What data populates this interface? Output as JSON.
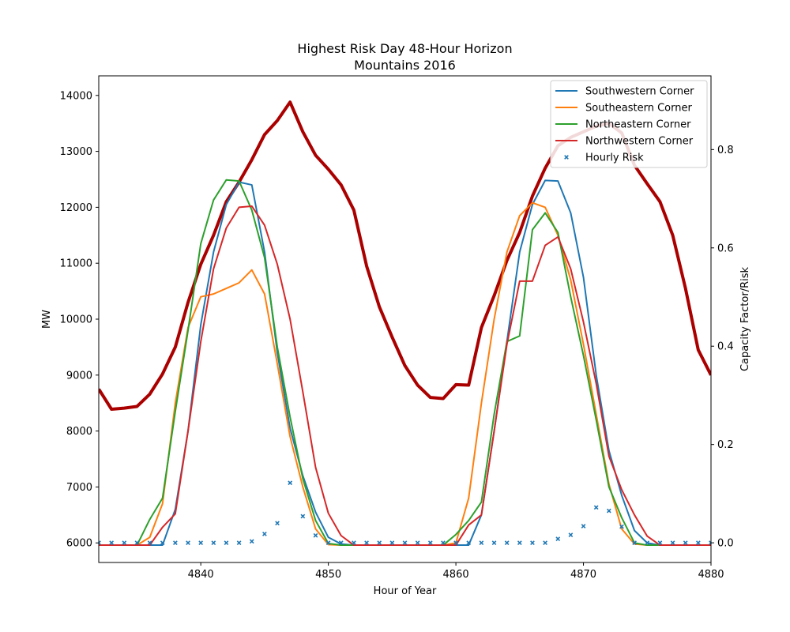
{
  "chart_data": {
    "type": "line",
    "title": "Highest Risk Day 48-Hour Horizon",
    "subtitle": "Mountains 2016",
    "xlabel": "Hour of Year",
    "ylabel": "MW",
    "y2label": "Capacity Factor/Risk",
    "xlim": [
      4832,
      4880
    ],
    "ylim": [
      5650,
      14350
    ],
    "y2lim": [
      -0.04,
      0.95
    ],
    "xticks": [
      4840,
      4850,
      4860,
      4870,
      4880
    ],
    "yticks": [
      6000,
      7000,
      8000,
      9000,
      10000,
      11000,
      12000,
      13000,
      14000
    ],
    "y2ticks": [
      0.0,
      0.2,
      0.4,
      0.6,
      0.8
    ],
    "grid": false,
    "legend": "top-right",
    "x": [
      4832,
      4833,
      4834,
      4835,
      4836,
      4837,
      4838,
      4839,
      4840,
      4841,
      4842,
      4843,
      4844,
      4845,
      4846,
      4847,
      4848,
      4849,
      4850,
      4851,
      4852,
      4853,
      4854,
      4855,
      4856,
      4857,
      4858,
      4859,
      4860,
      4861,
      4862,
      4863,
      4864,
      4865,
      4866,
      4867,
      4868,
      4869,
      4870,
      4871,
      4872,
      4873,
      4874,
      4875,
      4876,
      4877,
      4878,
      4879,
      4880
    ],
    "load": {
      "color": "#aa0000",
      "values": [
        8750,
        8390,
        8410,
        8440,
        8660,
        9020,
        9500,
        10300,
        10980,
        11500,
        12100,
        12450,
        12850,
        13300,
        13550,
        13880,
        13350,
        12930,
        12680,
        12400,
        11950,
        10950,
        10220,
        9680,
        9170,
        8820,
        8600,
        8580,
        8830,
        8820,
        9850,
        10420,
        11050,
        11550,
        12200,
        12700,
        13100,
        13250,
        13350,
        13450,
        13500,
        13330,
        12750,
        12420,
        12100,
        11500,
        10550,
        9450,
        9000
      ]
    },
    "series": [
      {
        "name": "Southwestern Corner",
        "color": "#1f77b4",
        "values": [
          5960,
          5960,
          5960,
          5960,
          5960,
          5960,
          6600,
          8000,
          9900,
          11200,
          12050,
          12450,
          12400,
          11200,
          9400,
          8050,
          7200,
          6550,
          6100,
          5980,
          5960,
          5960,
          5960,
          5960,
          5960,
          5960,
          5960,
          5960,
          5960,
          5960,
          6500,
          8000,
          9600,
          11200,
          12050,
          12480,
          12470,
          11900,
          10750,
          9000,
          7650,
          6850,
          6220,
          6000,
          5960,
          5960,
          5960,
          5960,
          5960
        ]
      },
      {
        "name": "Southeastern Corner",
        "color": "#ff7f0e",
        "values": [
          5960,
          5960,
          5960,
          5960,
          6100,
          6700,
          8500,
          9850,
          10400,
          10450,
          10550,
          10650,
          10880,
          10450,
          9200,
          7900,
          7000,
          6250,
          5970,
          5960,
          5960,
          5960,
          5960,
          5960,
          5960,
          5960,
          5960,
          5960,
          6000,
          6800,
          8500,
          10000,
          11200,
          11850,
          12080,
          12000,
          11500,
          10700,
          9550,
          8300,
          7050,
          6250,
          5980,
          5960,
          5960,
          5960,
          5960,
          5960,
          5960
        ]
      },
      {
        "name": "Northeastern Corner",
        "color": "#2ca02c",
        "values": [
          5960,
          5960,
          5960,
          5960,
          6420,
          6800,
          8350,
          9800,
          11350,
          12130,
          12490,
          12470,
          11950,
          11100,
          9500,
          8250,
          7150,
          6400,
          5990,
          5960,
          5960,
          5960,
          5960,
          5960,
          5960,
          5960,
          5960,
          5960,
          6150,
          6400,
          6730,
          8300,
          9600,
          9700,
          11600,
          11900,
          11550,
          10400,
          9350,
          8200,
          7000,
          6450,
          6000,
          5960,
          5960,
          5960,
          5960,
          5960,
          5960
        ]
      },
      {
        "name": "Northwestern Corner",
        "color": "#d62728",
        "values": [
          5960,
          5960,
          5960,
          5960,
          5960,
          6280,
          6520,
          8000,
          9600,
          10900,
          11630,
          12000,
          12020,
          11680,
          10980,
          10000,
          8700,
          7350,
          6530,
          6130,
          5960,
          5960,
          5960,
          5960,
          5960,
          5960,
          5960,
          5960,
          5960,
          6320,
          6500,
          8000,
          9550,
          10680,
          10680,
          11320,
          11470,
          10900,
          9950,
          8850,
          7550,
          6950,
          6500,
          6120,
          5960,
          5960,
          5960,
          5960,
          5960
        ]
      }
    ],
    "risk": {
      "name": "Hourly Risk",
      "color": "#1f77b4",
      "values": [
        0,
        0,
        0,
        0,
        0,
        0,
        0,
        0,
        0,
        0,
        0,
        0,
        0.003,
        0.018,
        0.04,
        0.122,
        0.054,
        0.015,
        0,
        0,
        0,
        0,
        0,
        0,
        0,
        0,
        0,
        0,
        0,
        0,
        0,
        0,
        0,
        0,
        0,
        0,
        0.008,
        0.016,
        0.034,
        0.072,
        0.065,
        0.033,
        0,
        0,
        0,
        0,
        0,
        0,
        0
      ]
    }
  }
}
